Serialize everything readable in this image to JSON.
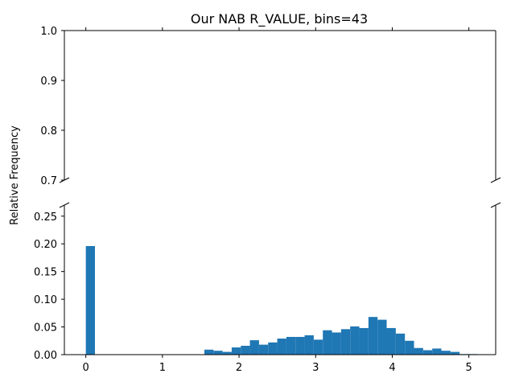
{
  "chart_data": {
    "type": "bar",
    "title": "Our NAB R_VALUE, bins=43",
    "xlabel": "",
    "ylabel": "Relative Frequency",
    "color": "#1f77b4",
    "broken_axis": true,
    "grid": false,
    "xlim": [
      -0.28,
      5.35
    ],
    "ylim_top": [
      0.7,
      1.0
    ],
    "ylim_bottom": [
      0,
      0.27
    ],
    "xticks": [
      0,
      1,
      2,
      3,
      4,
      5
    ],
    "xtick_labels": [
      "0",
      "1",
      "2",
      "3",
      "4",
      "5"
    ],
    "yticks_top": [
      0.7,
      0.8,
      0.9,
      1.0
    ],
    "ytick_labels_top": [
      "0.7",
      "0.8",
      "0.9",
      "1.0"
    ],
    "yticks_bottom": [
      0,
      0.05,
      0.1,
      0.15,
      0.2,
      0.25
    ],
    "ytick_labels_bottom": [
      "0.00",
      "0.05",
      "0.10",
      "0.15",
      "0.20",
      "0.25"
    ],
    "bin_start": 0,
    "bin_width": 0.119,
    "values": [
      0.196,
      0,
      0,
      0,
      0,
      0,
      0,
      0,
      0,
      0,
      0,
      0,
      0,
      0.009,
      0.007,
      0.005,
      0.013,
      0.016,
      0.026,
      0.018,
      0.022,
      0.029,
      0.032,
      0.032,
      0.035,
      0.027,
      0.044,
      0.04,
      0.046,
      0.051,
      0.048,
      0.068,
      0.063,
      0.048,
      0.038,
      0.025,
      0.012,
      0.008,
      0.011,
      0.007,
      0.005,
      0.001,
      0.001
    ]
  }
}
